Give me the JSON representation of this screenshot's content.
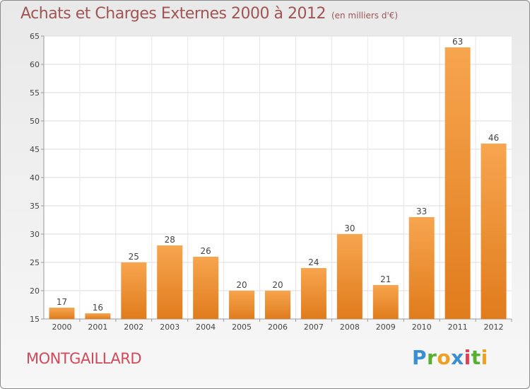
{
  "header": {
    "title": "Achats et Charges Externes 2000 à 2012",
    "unit": "(en milliers d'€)"
  },
  "footer": {
    "commune": "MONTGAILLARD",
    "logo": "Proxiti"
  },
  "colors": {
    "bar_light": "#f7a54f",
    "bar_dark": "#e07c1c",
    "title": "#a05555",
    "commune": "#d04a5a"
  },
  "chart_data": {
    "type": "bar",
    "title": "Achats et Charges Externes 2000 à 2012",
    "subtitle": "(en milliers d'€)",
    "categories": [
      "2000",
      "2001",
      "2002",
      "2003",
      "2004",
      "2005",
      "2006",
      "2007",
      "2008",
      "2009",
      "2010",
      "2011",
      "2012"
    ],
    "values": [
      17,
      16,
      25,
      28,
      26,
      20,
      20,
      24,
      30,
      21,
      33,
      63,
      46
    ],
    "ylim": [
      15,
      65
    ],
    "yticks": [
      15,
      20,
      25,
      30,
      35,
      40,
      45,
      50,
      55,
      60,
      65
    ],
    "grid": true,
    "data_labels": true
  }
}
